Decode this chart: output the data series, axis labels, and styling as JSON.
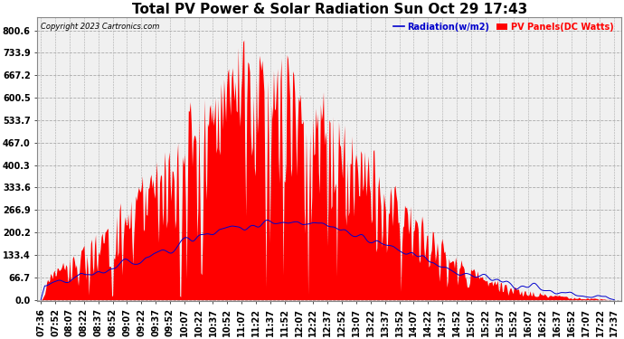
{
  "title": "Total PV Power & Solar Radiation Sun Oct 29 17:43",
  "copyright": "Copyright 2023 Cartronics.com",
  "legend_radiation": "Radiation(w/m2)",
  "legend_pv": "PV Panels(DC Watts)",
  "yticks": [
    0.0,
    66.7,
    133.4,
    200.2,
    266.9,
    333.6,
    400.3,
    467.0,
    533.7,
    600.5,
    667.2,
    733.9,
    800.6
  ],
  "ylim": [
    -5,
    840
  ],
  "bg_color": "#ffffff",
  "plot_bg_color": "#f0f0f0",
  "radiation_color": "#0000cc",
  "pv_color": "#ff0000",
  "grid_color": "#aaaaaa",
  "title_fontsize": 11,
  "tick_fontsize": 7,
  "xtick_labels": [
    "07:36",
    "07:52",
    "08:07",
    "08:22",
    "08:37",
    "08:52",
    "09:07",
    "09:22",
    "09:37",
    "09:52",
    "10:07",
    "10:22",
    "10:37",
    "10:52",
    "11:07",
    "11:22",
    "11:37",
    "11:52",
    "12:07",
    "12:22",
    "12:37",
    "12:52",
    "13:07",
    "13:22",
    "13:37",
    "13:52",
    "14:07",
    "14:22",
    "14:37",
    "14:52",
    "15:07",
    "15:22",
    "15:37",
    "15:52",
    "16:07",
    "16:22",
    "16:37",
    "16:52",
    "17:07",
    "17:22",
    "17:37"
  ]
}
